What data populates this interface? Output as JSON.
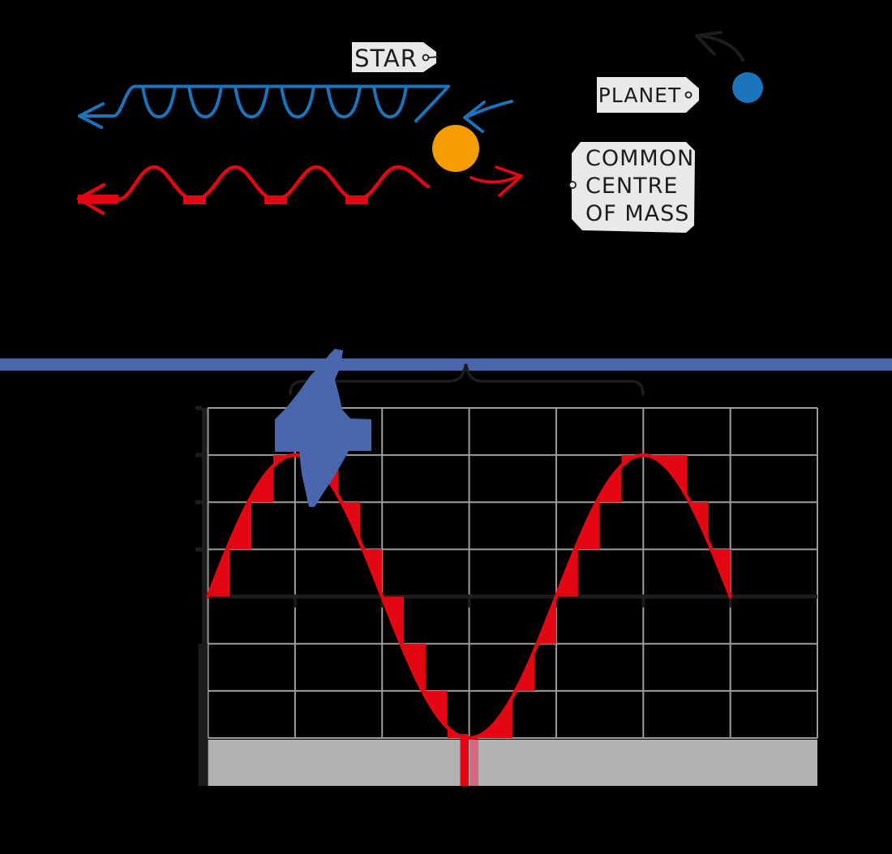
{
  "scene": {
    "background": "#000000"
  },
  "labels": {
    "star_tag": "STAR",
    "planet_tag": "PLANET",
    "com_line1": "COMMON",
    "com_line2": "CENTRE",
    "com_line3": "OF MASS"
  },
  "colors": {
    "ink": "#1d1d1b",
    "band_blue": "#4a67ad",
    "wave_blue": "#1b75bc",
    "star_orange": "#f59c00",
    "signal_red": "#e30613",
    "marker_pink": "#d4687f",
    "grid_gray": "#9d9d9c",
    "band_gray": "#b1b1b1",
    "label_bg": "#e9e9e9"
  },
  "chart_data": {
    "type": "line",
    "title": "",
    "xlabel": "",
    "ylabel": "",
    "grid": true,
    "x_range_grid_columns": [
      0,
      7
    ],
    "y_range_grid_rows": [
      -3,
      4
    ],
    "series": [
      {
        "name": "star-radial-velocity",
        "color": "#e30613",
        "model": "y = 3 * sin((pi/2) * x) in grid units",
        "amplitude_grid_rows": 3,
        "period_grid_columns": 4,
        "x_domain_grid_columns": [
          0,
          6
        ],
        "key_points": [
          [
            0,
            0
          ],
          [
            1,
            3
          ],
          [
            2,
            0
          ],
          [
            3,
            -3
          ],
          [
            4,
            0
          ],
          [
            5,
            3
          ],
          [
            6,
            0
          ]
        ]
      }
    ],
    "staircase_shading": {
      "color": "#e30613",
      "sample_step_grid_columns": 0.25,
      "value_quantum_grid_rows": 0.5
    },
    "annotations": {
      "period_brace_grid_columns": [
        1,
        5
      ],
      "blue_arrow_tip_grid_xy": [
        1,
        3
      ],
      "trough_marker_grid_x": 3
    }
  }
}
